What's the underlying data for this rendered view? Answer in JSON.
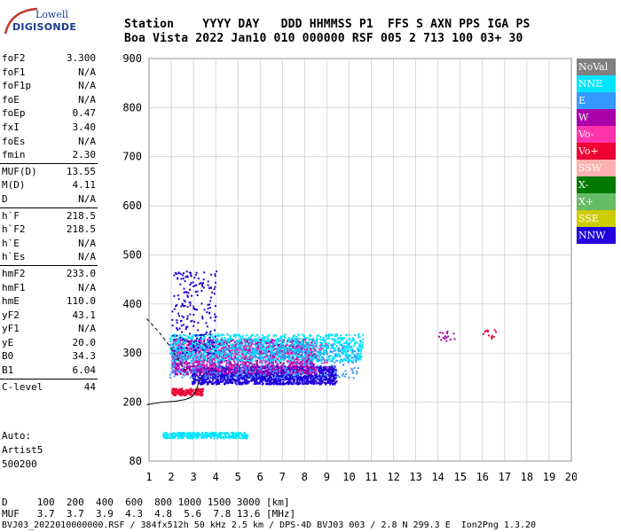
{
  "logo": {
    "line1": "Lowell",
    "line2": "DIGISONDE"
  },
  "header": {
    "line1": "Station    YYYY DAY   DDD HHMMSS P1  FFS S AXN PPS IGA PS",
    "line2": "Boa Vista 2022 Jan10 010 000000 RSF 005 2 713 100 03+ 30"
  },
  "params": [
    {
      "label": "foF2",
      "value": "3.300"
    },
    {
      "label": "foF1",
      "value": "N/A"
    },
    {
      "label": "foF1p",
      "value": "N/A"
    },
    {
      "label": "foE",
      "value": "N/A"
    },
    {
      "label": "foEp",
      "value": "0.47"
    },
    {
      "label": "fxI",
      "value": "3.40"
    },
    {
      "label": "foEs",
      "value": "N/A"
    },
    {
      "label": "fmin",
      "value": "2.30"
    },
    {
      "sep": true
    },
    {
      "label": "MUF(D)",
      "value": "13.55"
    },
    {
      "label": "M(D)",
      "value": "4.11"
    },
    {
      "label": "D",
      "value": "N/A"
    },
    {
      "sep": true
    },
    {
      "label": "h`F",
      "value": "218.5"
    },
    {
      "label": "h`F2",
      "value": "218.5"
    },
    {
      "label": "h`E",
      "value": "N/A"
    },
    {
      "label": "h`Es",
      "value": "N/A"
    },
    {
      "sep": true
    },
    {
      "label": "hmF2",
      "value": "233.0"
    },
    {
      "label": "hmF1",
      "value": "N/A"
    },
    {
      "label": "hmE",
      "value": "110.0"
    },
    {
      "label": "yF2",
      "value": "43.1"
    },
    {
      "label": "yF1",
      "value": "N/A"
    },
    {
      "label": "yE",
      "value": "20.0"
    },
    {
      "label": "B0",
      "value": "34.3"
    },
    {
      "label": "B1",
      "value": "6.04"
    },
    {
      "sep": true
    },
    {
      "label": "C-level",
      "value": "44"
    }
  ],
  "auto": {
    "line1": "Auto:",
    "line2": "Artist5",
    "line3": "500200"
  },
  "legend": [
    {
      "label": "NoVal",
      "color": "#808080"
    },
    {
      "label": "NNE",
      "color": "#00e5ff"
    },
    {
      "label": "E",
      "color": "#3399ff"
    },
    {
      "label": "W",
      "color": "#aa00aa"
    },
    {
      "label": "Vo-",
      "color": "#ff33aa"
    },
    {
      "label": "Vo+",
      "color": "#ee0033"
    },
    {
      "label": "SSW",
      "color": "#ffb0b0"
    },
    {
      "label": "X-",
      "color": "#007a00"
    },
    {
      "label": "X+",
      "color": "#66bb66"
    },
    {
      "label": "SSE",
      "color": "#cccc00"
    },
    {
      "label": "NNW",
      "color": "#2200dd"
    }
  ],
  "bottom": {
    "line1": "D     100  200  400  600  800 1000 1500 3000 [km]",
    "line2": "MUF   3.7  3.7  3.9  4.3  4.8  5.6  7.8 13.6 [MHz]",
    "line3": "BVJ03_2022010000000.RSF / 384fx512h 50 kHz 2.5 km / DPS-4D BVJ03 003 / 2.8 N 299.3 E  Ion2Png 1.3.20"
  },
  "chart_data": {
    "type": "scatter",
    "xlim": [
      1,
      20
    ],
    "ylim": [
      80,
      900
    ],
    "x_ticks": [
      1,
      2,
      3,
      4,
      5,
      6,
      7,
      8,
      9,
      10,
      11,
      12,
      13,
      14,
      15,
      16,
      17,
      18,
      19,
      20
    ],
    "y_ticks": [
      80,
      200,
      300,
      400,
      500,
      600,
      700,
      800,
      900
    ],
    "grid": true,
    "legend_position": "right",
    "traces": [
      {
        "name": "NNW",
        "color": "#2200dd",
        "x_range": [
          2.9,
          9.4
        ],
        "y_range": [
          238,
          275
        ],
        "n": 1500
      },
      {
        "name": "W",
        "color": "#aa00aa",
        "x_range": [
          2.0,
          8.5
        ],
        "y_range": [
          258,
          330
        ],
        "n": 1500
      },
      {
        "name": "NNE",
        "color": "#00e5ff",
        "x_range": [
          1.9,
          10.6
        ],
        "y_range": [
          285,
          340
        ],
        "n": 1200
      },
      {
        "name": "E",
        "color": "#3399ff",
        "x_range": [
          1.9,
          10.4
        ],
        "y_range": [
          250,
          320
        ],
        "n": 500
      },
      {
        "name": "Vo+",
        "color": "#ee0033",
        "x_range": [
          2.0,
          3.4
        ],
        "y_range": [
          215,
          230
        ],
        "n": 150
      },
      {
        "name": "Vo-",
        "color": "#ff33aa",
        "x_range": [
          2.0,
          9.0
        ],
        "y_range": [
          260,
          330
        ],
        "n": 150
      },
      {
        "name": "NNE",
        "color": "#00e5ff",
        "x_range": [
          1.6,
          5.4
        ],
        "y_range": [
          128,
          140
        ],
        "n": 350
      },
      {
        "name": "NNW",
        "color": "#2200dd",
        "x_range": [
          2.0,
          4.0
        ],
        "y_range": [
          300,
          470
        ],
        "n": 200
      },
      {
        "name": "W",
        "color": "#aa00aa",
        "x_range": [
          14.0,
          14.8
        ],
        "y_range": [
          325,
          350
        ],
        "n": 15
      },
      {
        "name": "Vo+",
        "color": "#ee0033",
        "x_range": [
          16.0,
          16.6
        ],
        "y_range": [
          330,
          350
        ],
        "n": 12
      }
    ],
    "profile_curve": {
      "x": [
        0.9,
        1.6,
        2.2,
        2.6,
        2.9,
        3.1,
        3.2,
        3.3
      ],
      "y": [
        195,
        200,
        202,
        205,
        210,
        222,
        235,
        250
      ]
    },
    "dashed_curve": {
      "x": [
        0.9,
        1.5,
        2.0,
        2.4,
        2.7
      ],
      "y": [
        370,
        340,
        310,
        280,
        260
      ]
    }
  }
}
